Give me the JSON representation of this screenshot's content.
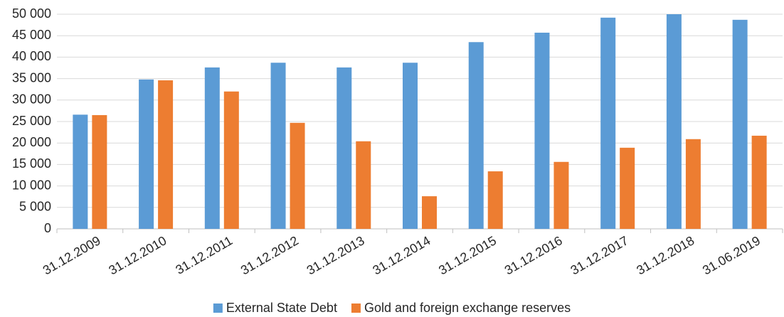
{
  "chart_data": {
    "type": "bar",
    "categories": [
      "31.12.2009",
      "31.12.2010",
      "31.12.2011",
      "31.12.2012",
      "31.12.2013",
      "31.12.2014",
      "31.12.2015",
      "31.12.2016",
      "31.12.2017",
      "31.12.2018",
      "31.06.2019"
    ],
    "series": [
      {
        "name": "External State Debt",
        "color": "#5b9bd5",
        "values": [
          26600,
          34800,
          37600,
          38700,
          37600,
          38700,
          43500,
          45700,
          49200,
          50000,
          48700
        ]
      },
      {
        "name": "Gold and foreign exchange reserves",
        "color": "#ed7d31",
        "values": [
          26500,
          34600,
          32000,
          24700,
          20400,
          7600,
          13400,
          15600,
          18900,
          20900,
          21700
        ]
      }
    ],
    "ylim": [
      0,
      50000
    ],
    "yticks": [
      0,
      {
        "value": 5000,
        "label": "5 000"
      },
      {
        "value": 10000,
        "label": "10 000"
      },
      {
        "value": 15000,
        "label": "15 000"
      },
      {
        "value": 20000,
        "label": "20 000"
      },
      {
        "value": 25000,
        "label": "25 000"
      },
      {
        "value": 30000,
        "label": "30 000"
      },
      {
        "value": 35000,
        "label": "35 000"
      },
      {
        "value": 40000,
        "label": "40 000"
      },
      {
        "value": 45000,
        "label": "45 000"
      },
      {
        "value": 50000,
        "label": "50 000"
      }
    ],
    "grid": true,
    "legend": "bottom"
  }
}
